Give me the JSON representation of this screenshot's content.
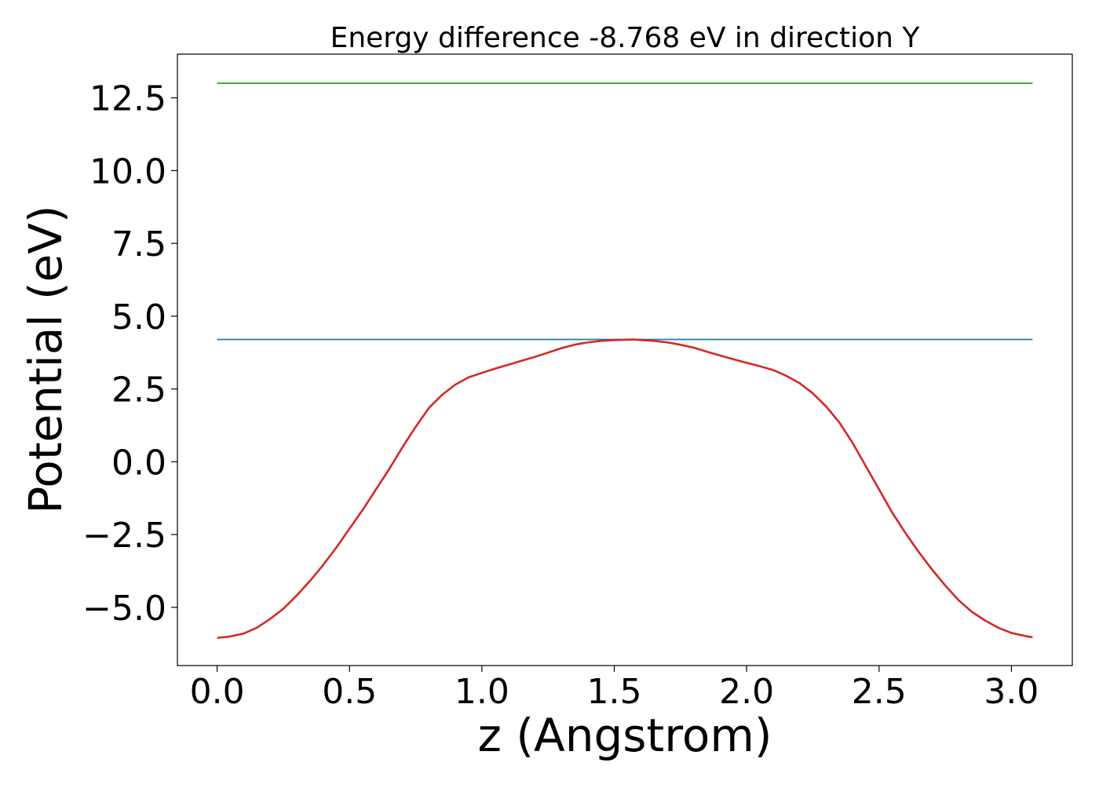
{
  "chart_data": {
    "type": "line",
    "title": "Energy difference -8.768 eV in direction Y",
    "xlabel": "z (Angstrom)",
    "ylabel": "Potential (eV)",
    "xlim": [
      -0.15,
      3.23
    ],
    "ylim": [
      -7.0,
      14.0
    ],
    "xticks": [
      0.0,
      0.5,
      1.0,
      1.5,
      2.0,
      2.5,
      3.0
    ],
    "xtick_labels": [
      "0.0",
      "0.5",
      "1.0",
      "1.5",
      "2.0",
      "2.5",
      "3.0"
    ],
    "yticks": [
      -5.0,
      -2.5,
      0.0,
      2.5,
      5.0,
      7.5,
      10.0,
      12.5
    ],
    "ytick_labels": [
      "−5.0",
      "−2.5",
      "0.0",
      "2.5",
      "5.0",
      "7.5",
      "10.0",
      "12.5"
    ],
    "grid": false,
    "legend": false,
    "series": [
      {
        "color": "#2ca02c",
        "x": [
          0.0,
          3.08
        ],
        "y": [
          13.0,
          13.0
        ]
      },
      {
        "color": "#1f77b4",
        "x": [
          0.0,
          3.08
        ],
        "y": [
          4.2,
          4.2
        ]
      },
      {
        "color": "#d62728",
        "x": [
          0.0,
          0.05,
          0.1,
          0.15,
          0.2,
          0.25,
          0.3,
          0.35,
          0.4,
          0.45,
          0.5,
          0.55,
          0.6,
          0.65,
          0.7,
          0.75,
          0.8,
          0.85,
          0.9,
          0.95,
          1.0,
          1.05,
          1.1,
          1.15,
          1.2,
          1.25,
          1.3,
          1.35,
          1.4,
          1.45,
          1.5,
          1.57,
          1.65,
          1.7,
          1.75,
          1.8,
          1.85,
          1.9,
          1.95,
          2.0,
          2.05,
          2.1,
          2.15,
          2.2,
          2.25,
          2.3,
          2.35,
          2.4,
          2.45,
          2.5,
          2.55,
          2.6,
          2.65,
          2.7,
          2.75,
          2.8,
          2.85,
          2.9,
          2.95,
          3.0,
          3.05,
          3.08
        ],
        "y": [
          -6.05,
          -6.0,
          -5.9,
          -5.7,
          -5.4,
          -5.05,
          -4.6,
          -4.1,
          -3.55,
          -2.95,
          -2.3,
          -1.65,
          -0.95,
          -0.25,
          0.5,
          1.2,
          1.85,
          2.3,
          2.65,
          2.9,
          3.05,
          3.2,
          3.33,
          3.47,
          3.6,
          3.75,
          3.9,
          4.02,
          4.1,
          4.15,
          4.18,
          4.2,
          4.15,
          4.1,
          4.02,
          3.92,
          3.78,
          3.65,
          3.52,
          3.4,
          3.28,
          3.15,
          2.95,
          2.7,
          2.35,
          1.9,
          1.35,
          0.65,
          -0.15,
          -0.95,
          -1.75,
          -2.45,
          -3.1,
          -3.7,
          -4.25,
          -4.75,
          -5.15,
          -5.45,
          -5.7,
          -5.88,
          -5.98,
          -6.03
        ]
      }
    ]
  }
}
